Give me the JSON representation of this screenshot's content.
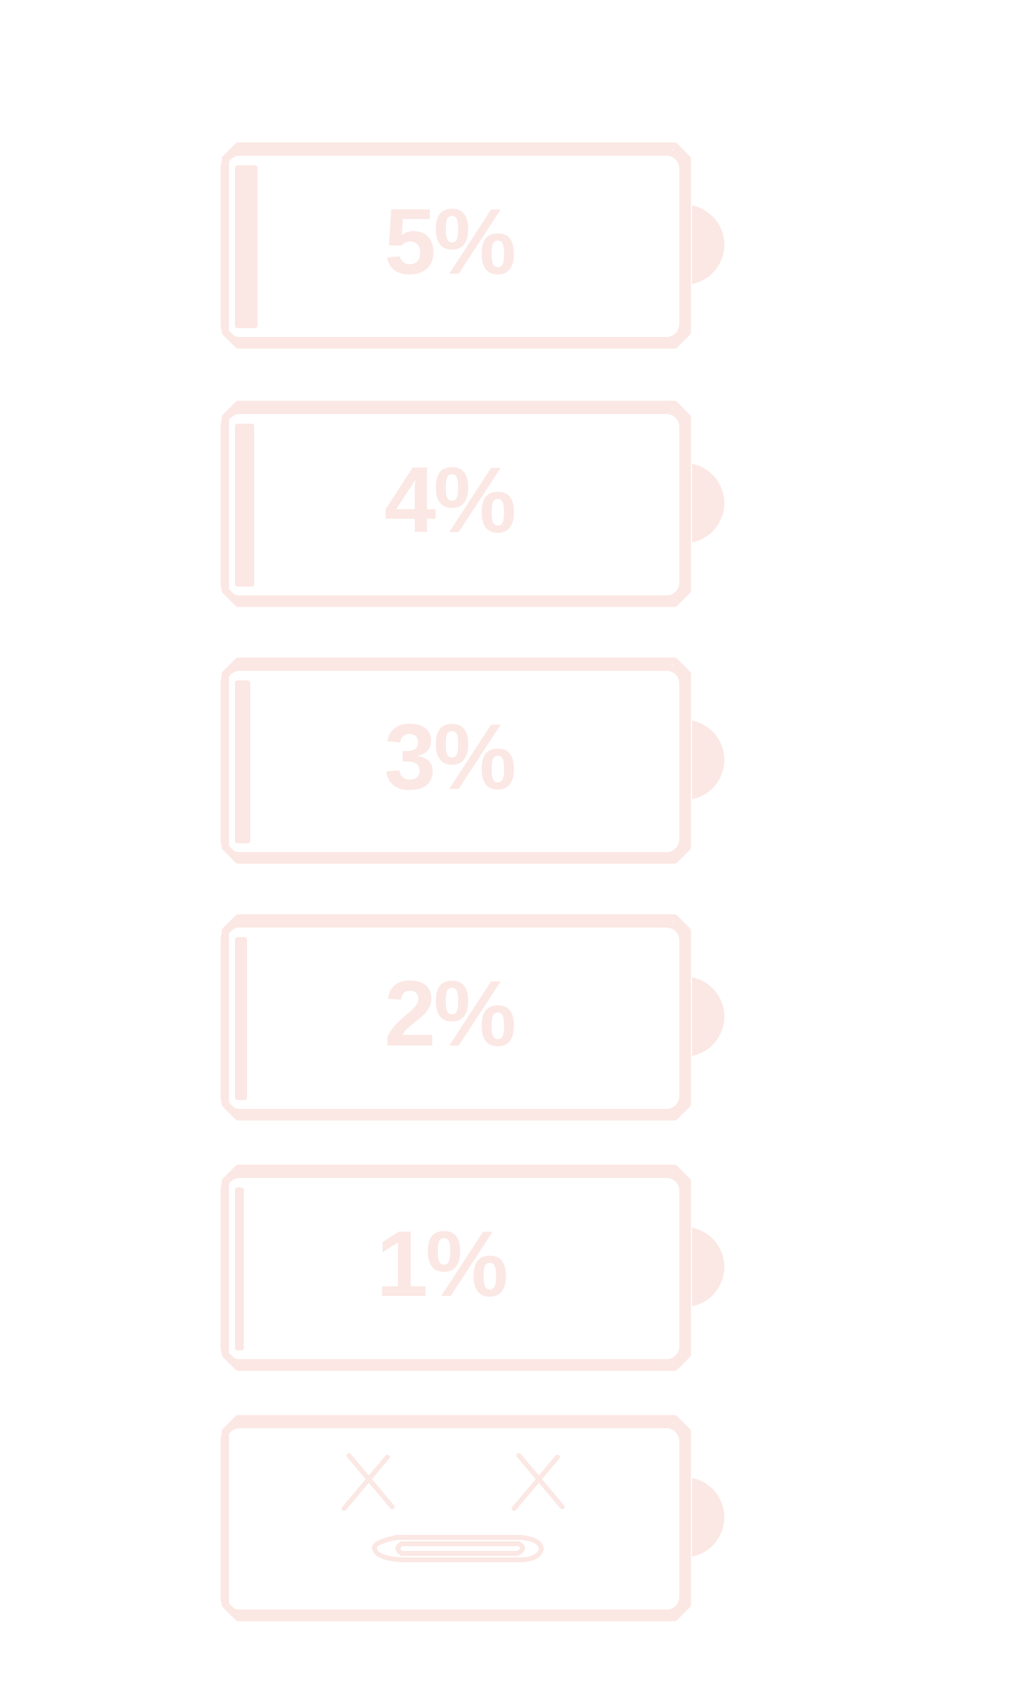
{
  "accent_color": "#fbe7e3",
  "batteries": [
    {
      "label": "5%",
      "level_percent": 5
    },
    {
      "label": "4%",
      "level_percent": 4
    },
    {
      "label": "3%",
      "level_percent": 3
    },
    {
      "label": "2%",
      "level_percent": 2
    },
    {
      "label": "1%",
      "level_percent": 1
    }
  ],
  "empty_battery": {
    "level_percent": 0,
    "face_icon": "dead-face-icon"
  }
}
